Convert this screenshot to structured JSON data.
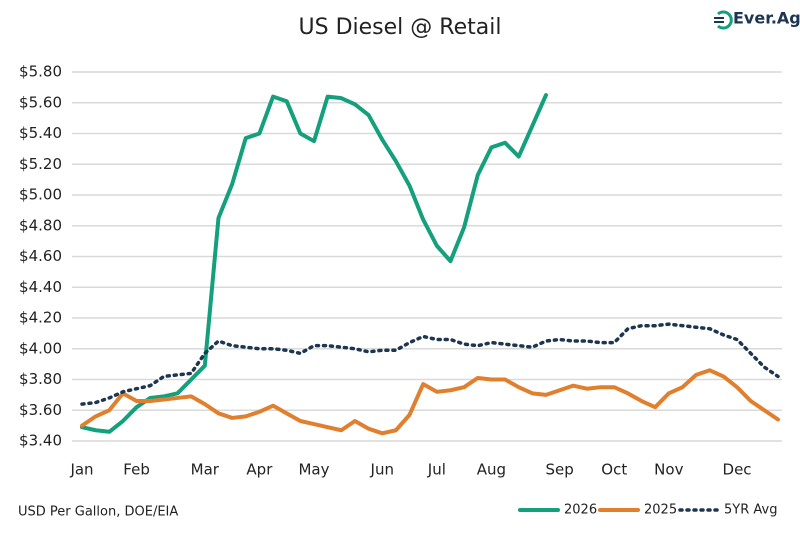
{
  "chart_data": {
    "type": "line",
    "title": "US Diesel @ Retail",
    "source": "USD Per Gallon, DOE/EIA",
    "logo": "Ever.Ag",
    "categories": [
      "Jan",
      null,
      null,
      null,
      "Feb",
      null,
      null,
      null,
      null,
      "Mar",
      null,
      null,
      null,
      "Apr",
      null,
      null,
      null,
      "May",
      null,
      null,
      null,
      null,
      "Jun",
      null,
      null,
      null,
      "Jul",
      null,
      null,
      null,
      "Aug",
      null,
      null,
      null,
      null,
      "Sep",
      null,
      null,
      null,
      "Oct",
      null,
      null,
      null,
      "Nov",
      null,
      null,
      null,
      null,
      "Dec",
      null,
      null,
      null
    ],
    "series": [
      {
        "name": "2026",
        "color": "#14a07c",
        "style": "solid",
        "values": [
          3.49,
          3.47,
          3.46,
          3.53,
          3.62,
          3.68,
          3.69,
          3.71,
          3.8,
          3.89,
          4.85,
          5.07,
          5.37,
          5.4,
          5.64,
          5.61,
          5.4,
          5.35,
          5.64,
          5.63,
          5.59,
          5.52,
          5.36,
          5.22,
          5.06,
          4.84,
          4.67,
          4.57,
          4.79,
          5.13,
          5.31,
          5.34,
          5.25,
          5.45,
          5.65,
          null,
          null,
          null,
          null,
          null,
          null,
          null,
          null,
          null,
          null,
          null,
          null,
          null,
          null,
          null,
          null,
          null
        ]
      },
      {
        "name": "2025",
        "color": "#e07f2e",
        "style": "solid",
        "values": [
          3.5,
          3.56,
          3.6,
          3.71,
          3.66,
          3.66,
          3.67,
          3.68,
          3.69,
          3.64,
          3.58,
          3.55,
          3.56,
          3.59,
          3.63,
          3.58,
          3.53,
          3.51,
          3.49,
          3.47,
          3.53,
          3.48,
          3.45,
          3.47,
          3.57,
          3.77,
          3.72,
          3.73,
          3.75,
          3.81,
          3.8,
          3.8,
          3.75,
          3.71,
          3.7,
          3.73,
          3.76,
          3.74,
          3.75,
          3.75,
          3.71,
          3.66,
          3.62,
          3.71,
          3.75,
          3.83,
          3.86,
          3.82,
          3.75,
          3.66,
          3.6,
          3.54
        ]
      },
      {
        "name": "5YR Avg",
        "color": "#1c3550",
        "style": "dotted",
        "values": [
          3.64,
          3.65,
          3.68,
          3.72,
          3.74,
          3.76,
          3.82,
          3.83,
          3.84,
          3.97,
          4.05,
          4.02,
          4.01,
          4.0,
          4.0,
          3.99,
          3.97,
          4.02,
          4.02,
          4.01,
          4.0,
          3.98,
          3.99,
          3.99,
          4.04,
          4.08,
          4.06,
          4.06,
          4.03,
          4.02,
          4.04,
          4.03,
          4.02,
          4.01,
          4.05,
          4.06,
          4.05,
          4.05,
          4.04,
          4.04,
          4.13,
          4.15,
          4.15,
          4.16,
          4.15,
          4.14,
          4.13,
          4.09,
          4.06,
          3.97,
          3.88,
          3.82
        ]
      }
    ],
    "ylim": [
      3.4,
      5.8
    ],
    "yticks": [
      {
        "value": 3.4,
        "label": "$3.40"
      },
      {
        "value": 3.6,
        "label": "$3.60"
      },
      {
        "value": 3.8,
        "label": "$3.80"
      },
      {
        "value": 4.0,
        "label": "$4.00"
      },
      {
        "value": 4.2,
        "label": "$4.20"
      },
      {
        "value": 4.4,
        "label": "$4.40"
      },
      {
        "value": 4.6,
        "label": "$4.60"
      },
      {
        "value": 4.8,
        "label": "$4.80"
      },
      {
        "value": 5.0,
        "label": "$5.00"
      },
      {
        "value": 5.2,
        "label": "$5.20"
      },
      {
        "value": 5.4,
        "label": "$5.40"
      },
      {
        "value": 5.6,
        "label": "$5.60"
      },
      {
        "value": 5.8,
        "label": "$5.80"
      }
    ],
    "grid": true,
    "legend": "bottom-right"
  }
}
